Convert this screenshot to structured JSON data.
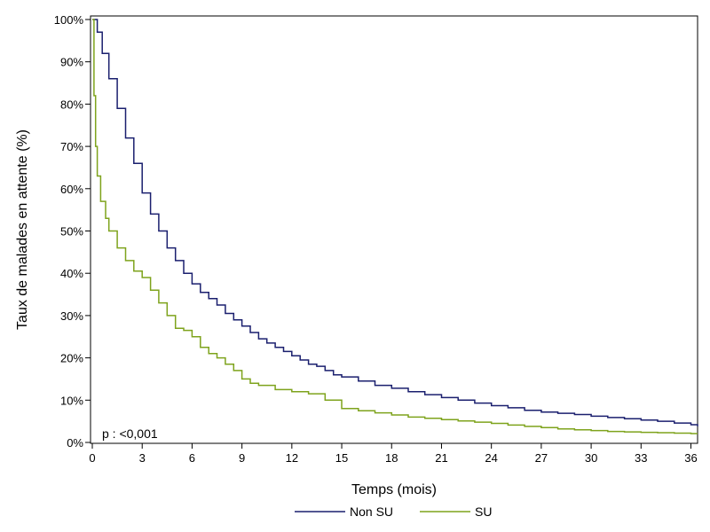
{
  "chart_data": {
    "type": "line",
    "title": "",
    "xlabel": "Temps (mois)",
    "ylabel": "Taux de malades en attente (%)",
    "xlim": [
      0,
      36.4
    ],
    "ylim": [
      0,
      100
    ],
    "x_ticks": [
      0,
      3,
      6,
      9,
      12,
      15,
      18,
      21,
      24,
      27,
      30,
      33,
      36
    ],
    "y_ticks": [
      0,
      10,
      20,
      30,
      40,
      50,
      60,
      70,
      80,
      90,
      100
    ],
    "y_tick_labels": [
      "0%",
      "10%",
      "20%",
      "30%",
      "40%",
      "50%",
      "60%",
      "70%",
      "80%",
      "90%",
      "100%"
    ],
    "grid": false,
    "legend_position": "bottom",
    "annotation": "p : <0,001",
    "series": [
      {
        "name": "Non SU",
        "color": "#1a1f6e",
        "step": true,
        "points": [
          [
            0,
            100
          ],
          [
            0.3,
            97
          ],
          [
            0.6,
            92
          ],
          [
            1,
            86
          ],
          [
            1.5,
            79
          ],
          [
            2,
            72
          ],
          [
            2.5,
            66
          ],
          [
            3,
            59
          ],
          [
            3.5,
            54
          ],
          [
            4,
            50
          ],
          [
            4.5,
            46
          ],
          [
            5,
            43
          ],
          [
            5.5,
            40
          ],
          [
            6,
            37.5
          ],
          [
            6.5,
            35.5
          ],
          [
            7,
            34
          ],
          [
            7.5,
            32.5
          ],
          [
            8,
            30.5
          ],
          [
            8.5,
            29
          ],
          [
            9,
            27.5
          ],
          [
            9.5,
            26
          ],
          [
            10,
            24.5
          ],
          [
            10.5,
            23.5
          ],
          [
            11,
            22.5
          ],
          [
            11.5,
            21.5
          ],
          [
            12,
            20.5
          ],
          [
            12.5,
            19.5
          ],
          [
            13,
            18.5
          ],
          [
            13.5,
            18
          ],
          [
            14,
            17
          ],
          [
            14.5,
            16
          ],
          [
            15,
            15.5
          ],
          [
            16,
            14.5
          ],
          [
            17,
            13.5
          ],
          [
            18,
            12.8
          ],
          [
            19,
            12
          ],
          [
            20,
            11.3
          ],
          [
            21,
            10.6
          ],
          [
            22,
            10
          ],
          [
            23,
            9.3
          ],
          [
            24,
            8.7
          ],
          [
            25,
            8.2
          ],
          [
            26,
            7.6
          ],
          [
            27,
            7.2
          ],
          [
            28,
            6.9
          ],
          [
            29,
            6.6
          ],
          [
            30,
            6.2
          ],
          [
            31,
            5.9
          ],
          [
            32,
            5.6
          ],
          [
            33,
            5.3
          ],
          [
            34,
            5
          ],
          [
            35,
            4.6
          ],
          [
            36,
            4.2
          ],
          [
            36.4,
            3.8
          ]
        ]
      },
      {
        "name": "SU",
        "color": "#7ea31c",
        "step": true,
        "points": [
          [
            0,
            100
          ],
          [
            0.1,
            82
          ],
          [
            0.2,
            70
          ],
          [
            0.3,
            63
          ],
          [
            0.5,
            57
          ],
          [
            0.8,
            53
          ],
          [
            1,
            50
          ],
          [
            1.5,
            46
          ],
          [
            2,
            43
          ],
          [
            2.5,
            40.5
          ],
          [
            3,
            39
          ],
          [
            3.5,
            36
          ],
          [
            4,
            33
          ],
          [
            4.5,
            30
          ],
          [
            5,
            27
          ],
          [
            5.5,
            26.5
          ],
          [
            6,
            25
          ],
          [
            6.5,
            22.5
          ],
          [
            7,
            21
          ],
          [
            7.5,
            20
          ],
          [
            8,
            18.5
          ],
          [
            8.5,
            17
          ],
          [
            9,
            15
          ],
          [
            9.5,
            14
          ],
          [
            10,
            13.5
          ],
          [
            11,
            12.5
          ],
          [
            12,
            12
          ],
          [
            13,
            11.5
          ],
          [
            14,
            10
          ],
          [
            15,
            8
          ],
          [
            16,
            7.5
          ],
          [
            17,
            7
          ],
          [
            18,
            6.5
          ],
          [
            19,
            6
          ],
          [
            20,
            5.7
          ],
          [
            21,
            5.4
          ],
          [
            22,
            5.1
          ],
          [
            23,
            4.8
          ],
          [
            24,
            4.5
          ],
          [
            25,
            4.1
          ],
          [
            26,
            3.8
          ],
          [
            27,
            3.5
          ],
          [
            28,
            3.2
          ],
          [
            29,
            3
          ],
          [
            30,
            2.8
          ],
          [
            31,
            2.6
          ],
          [
            32,
            2.5
          ],
          [
            33,
            2.4
          ],
          [
            34,
            2.3
          ],
          [
            35,
            2.2
          ],
          [
            36,
            2.1
          ],
          [
            36.4,
            2.1
          ]
        ]
      }
    ]
  }
}
